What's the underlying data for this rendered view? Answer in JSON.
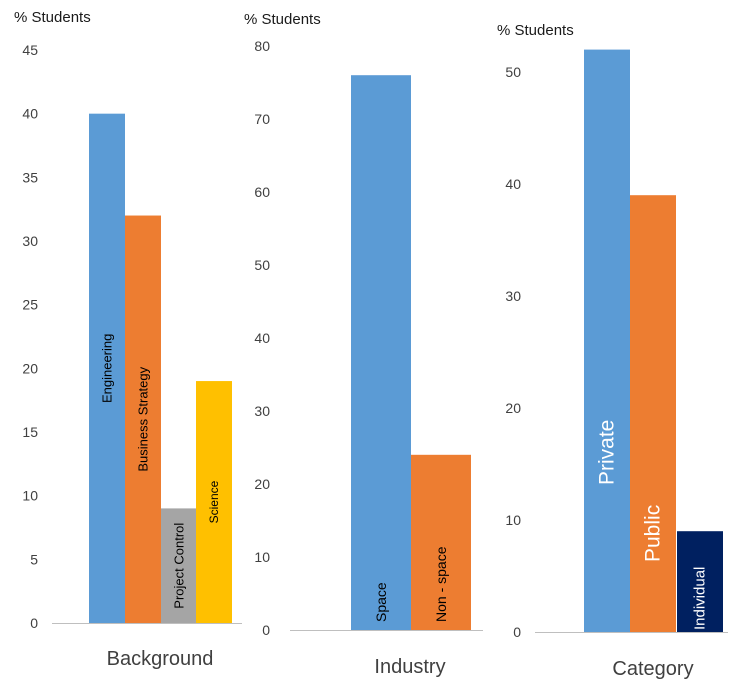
{
  "chart_data": [
    {
      "type": "bar",
      "ylabel": "% Students",
      "xlabel": "Background",
      "ylim": [
        0,
        45
      ],
      "yticks": [
        "0",
        "5",
        "10",
        "15",
        "20",
        "25",
        "30",
        "35",
        "40",
        "45"
      ],
      "categories": [
        "Engineering",
        "Business Strategy",
        "Project Control",
        "Science"
      ],
      "values": [
        40,
        32,
        9,
        19
      ],
      "colors": [
        "#5b9bd5",
        "#ed7d31",
        "#a5a5a5",
        "#ffc000"
      ],
      "label_colors": [
        "#000000",
        "#000000",
        "#000000",
        "#000000"
      ]
    },
    {
      "type": "bar",
      "ylabel": "% Students",
      "xlabel": "Industry",
      "ylim": [
        0,
        80
      ],
      "yticks": [
        "0",
        "10",
        "20",
        "30",
        "40",
        "50",
        "60",
        "70",
        "80"
      ],
      "categories": [
        "Space",
        "Non - space"
      ],
      "values": [
        76,
        24
      ],
      "colors": [
        "#5b9bd5",
        "#ed7d31"
      ],
      "label_colors": [
        "#000000",
        "#000000"
      ]
    },
    {
      "type": "bar",
      "ylabel": "% Students",
      "xlabel": "Category",
      "ylim": [
        0,
        50
      ],
      "yticks": [
        "0",
        "10",
        "20",
        "30",
        "40",
        "50"
      ],
      "categories": [
        "Private",
        "Public",
        "Individual"
      ],
      "values": [
        52,
        39,
        9
      ],
      "colors": [
        "#5b9bd5",
        "#ed7d31",
        "#002060"
      ],
      "label_colors": [
        "#ffffff",
        "#ffffff",
        "#ffffff"
      ]
    }
  ]
}
